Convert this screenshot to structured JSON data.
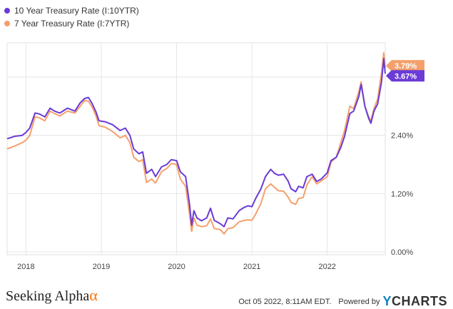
{
  "legend": [
    {
      "label": "10 Year Treasury Rate (I:10YTR)",
      "color": "#6a3bd6"
    },
    {
      "label": "7 Year Treasury Rate (I:7YTR)",
      "color": "#f5a06b"
    }
  ],
  "footer": {
    "brand_text": "Seeking Alpha",
    "brand_symbol": "α",
    "timestamp": "Oct 05 2022, 8:11AM EDT.",
    "powered_by": "Powered by",
    "ycharts_y": "Y",
    "ycharts_rest": "CHARTS"
  },
  "chart_data": {
    "type": "line",
    "title": "",
    "xlabel": "",
    "ylabel": "",
    "x_ticks": [
      "2018",
      "2019",
      "2020",
      "2021",
      "2022"
    ],
    "y_ticks": [
      "0.00%",
      "1.20%",
      "2.40%"
    ],
    "ylim": [
      0,
      4.1
    ],
    "xlim": [
      2017.75,
      2022.77
    ],
    "grid": true,
    "legend_position": "top-left",
    "end_labels": [
      {
        "text": "3.79%",
        "series": "7 Year Treasury Rate (I:7YTR)",
        "value": 3.79,
        "color": "#f5a06b"
      },
      {
        "text": "3.67%",
        "series": "10 Year Treasury Rate (I:10YTR)",
        "value": 3.67,
        "color": "#6a3bd6"
      }
    ],
    "series": [
      {
        "name": "10 Year Treasury Rate (I:10YTR)",
        "color": "#6a3bd6",
        "points": [
          [
            2017.75,
            2.33
          ],
          [
            2017.85,
            2.38
          ],
          [
            2017.95,
            2.4
          ],
          [
            2018.0,
            2.46
          ],
          [
            2018.05,
            2.55
          ],
          [
            2018.12,
            2.86
          ],
          [
            2018.18,
            2.84
          ],
          [
            2018.25,
            2.78
          ],
          [
            2018.32,
            2.96
          ],
          [
            2018.38,
            2.9
          ],
          [
            2018.45,
            2.86
          ],
          [
            2018.55,
            2.96
          ],
          [
            2018.65,
            2.9
          ],
          [
            2018.72,
            3.07
          ],
          [
            2018.78,
            3.16
          ],
          [
            2018.83,
            3.18
          ],
          [
            2018.88,
            3.05
          ],
          [
            2018.93,
            2.88
          ],
          [
            2018.97,
            2.7
          ],
          [
            2019.05,
            2.68
          ],
          [
            2019.15,
            2.62
          ],
          [
            2019.25,
            2.5
          ],
          [
            2019.32,
            2.55
          ],
          [
            2019.38,
            2.4
          ],
          [
            2019.43,
            2.12
          ],
          [
            2019.5,
            2.02
          ],
          [
            2019.55,
            2.06
          ],
          [
            2019.6,
            1.62
          ],
          [
            2019.67,
            1.7
          ],
          [
            2019.72,
            1.55
          ],
          [
            2019.8,
            1.75
          ],
          [
            2019.87,
            1.8
          ],
          [
            2019.93,
            1.9
          ],
          [
            2020.0,
            1.88
          ],
          [
            2020.05,
            1.65
          ],
          [
            2020.12,
            1.55
          ],
          [
            2020.17,
            1.0
          ],
          [
            2020.2,
            0.55
          ],
          [
            2020.23,
            0.85
          ],
          [
            2020.27,
            0.7
          ],
          [
            2020.33,
            0.64
          ],
          [
            2020.4,
            0.7
          ],
          [
            2020.45,
            0.9
          ],
          [
            2020.5,
            0.65
          ],
          [
            2020.58,
            0.58
          ],
          [
            2020.63,
            0.52
          ],
          [
            2020.68,
            0.7
          ],
          [
            2020.75,
            0.68
          ],
          [
            2020.83,
            0.85
          ],
          [
            2020.9,
            0.92
          ],
          [
            2020.95,
            0.95
          ],
          [
            2021.0,
            0.93
          ],
          [
            2021.05,
            1.1
          ],
          [
            2021.12,
            1.3
          ],
          [
            2021.18,
            1.55
          ],
          [
            2021.25,
            1.7
          ],
          [
            2021.3,
            1.62
          ],
          [
            2021.35,
            1.58
          ],
          [
            2021.42,
            1.6
          ],
          [
            2021.48,
            1.46
          ],
          [
            2021.52,
            1.3
          ],
          [
            2021.58,
            1.24
          ],
          [
            2021.62,
            1.35
          ],
          [
            2021.68,
            1.32
          ],
          [
            2021.73,
            1.55
          ],
          [
            2021.8,
            1.6
          ],
          [
            2021.86,
            1.45
          ],
          [
            2021.92,
            1.5
          ],
          [
            2022.0,
            1.63
          ],
          [
            2022.05,
            1.88
          ],
          [
            2022.12,
            1.95
          ],
          [
            2022.18,
            2.15
          ],
          [
            2022.23,
            2.38
          ],
          [
            2022.3,
            2.85
          ],
          [
            2022.35,
            2.9
          ],
          [
            2022.42,
            3.2
          ],
          [
            2022.45,
            3.45
          ],
          [
            2022.5,
            3.0
          ],
          [
            2022.55,
            2.75
          ],
          [
            2022.58,
            2.65
          ],
          [
            2022.62,
            2.9
          ],
          [
            2022.67,
            3.05
          ],
          [
            2022.72,
            3.49
          ],
          [
            2022.75,
            3.98
          ],
          [
            2022.77,
            3.67
          ]
        ]
      },
      {
        "name": "7 Year Treasury Rate (I:7YTR)",
        "color": "#f5a06b",
        "points": [
          [
            2017.75,
            2.12
          ],
          [
            2017.85,
            2.18
          ],
          [
            2017.95,
            2.25
          ],
          [
            2018.0,
            2.3
          ],
          [
            2018.05,
            2.4
          ],
          [
            2018.12,
            2.78
          ],
          [
            2018.18,
            2.76
          ],
          [
            2018.25,
            2.7
          ],
          [
            2018.32,
            2.9
          ],
          [
            2018.38,
            2.85
          ],
          [
            2018.45,
            2.8
          ],
          [
            2018.55,
            2.9
          ],
          [
            2018.65,
            2.86
          ],
          [
            2018.72,
            3.0
          ],
          [
            2018.78,
            3.12
          ],
          [
            2018.83,
            3.1
          ],
          [
            2018.88,
            2.98
          ],
          [
            2018.93,
            2.8
          ],
          [
            2018.97,
            2.6
          ],
          [
            2019.05,
            2.57
          ],
          [
            2019.15,
            2.48
          ],
          [
            2019.25,
            2.35
          ],
          [
            2019.32,
            2.4
          ],
          [
            2019.38,
            2.25
          ],
          [
            2019.43,
            1.95
          ],
          [
            2019.5,
            1.86
          ],
          [
            2019.55,
            1.9
          ],
          [
            2019.6,
            1.43
          ],
          [
            2019.67,
            1.5
          ],
          [
            2019.72,
            1.42
          ],
          [
            2019.8,
            1.65
          ],
          [
            2019.87,
            1.72
          ],
          [
            2019.93,
            1.82
          ],
          [
            2020.0,
            1.8
          ],
          [
            2020.05,
            1.5
          ],
          [
            2020.12,
            1.35
          ],
          [
            2020.17,
            0.8
          ],
          [
            2020.2,
            0.42
          ],
          [
            2020.23,
            0.7
          ],
          [
            2020.27,
            0.55
          ],
          [
            2020.33,
            0.52
          ],
          [
            2020.4,
            0.54
          ],
          [
            2020.45,
            0.68
          ],
          [
            2020.5,
            0.48
          ],
          [
            2020.58,
            0.46
          ],
          [
            2020.63,
            0.37
          ],
          [
            2020.68,
            0.48
          ],
          [
            2020.75,
            0.5
          ],
          [
            2020.83,
            0.62
          ],
          [
            2020.9,
            0.65
          ],
          [
            2020.95,
            0.66
          ],
          [
            2021.0,
            0.65
          ],
          [
            2021.05,
            0.78
          ],
          [
            2021.12,
            1.0
          ],
          [
            2021.18,
            1.3
          ],
          [
            2021.25,
            1.4
          ],
          [
            2021.3,
            1.33
          ],
          [
            2021.35,
            1.26
          ],
          [
            2021.42,
            1.25
          ],
          [
            2021.48,
            1.13
          ],
          [
            2021.52,
            1.02
          ],
          [
            2021.58,
            0.98
          ],
          [
            2021.62,
            1.1
          ],
          [
            2021.68,
            1.12
          ],
          [
            2021.73,
            1.38
          ],
          [
            2021.8,
            1.55
          ],
          [
            2021.86,
            1.4
          ],
          [
            2021.92,
            1.46
          ],
          [
            2022.0,
            1.55
          ],
          [
            2022.05,
            1.85
          ],
          [
            2022.12,
            1.95
          ],
          [
            2022.18,
            2.25
          ],
          [
            2022.23,
            2.5
          ],
          [
            2022.3,
            3.0
          ],
          [
            2022.35,
            2.95
          ],
          [
            2022.42,
            3.3
          ],
          [
            2022.45,
            3.5
          ],
          [
            2022.5,
            3.0
          ],
          [
            2022.55,
            2.78
          ],
          [
            2022.58,
            2.7
          ],
          [
            2022.62,
            2.95
          ],
          [
            2022.67,
            3.15
          ],
          [
            2022.72,
            3.68
          ],
          [
            2022.75,
            4.1
          ],
          [
            2022.77,
            3.79
          ]
        ]
      }
    ]
  }
}
